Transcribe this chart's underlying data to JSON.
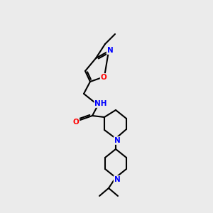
{
  "background_color": "#ebebeb",
  "atom_colors": {
    "N": "#0000ff",
    "O": "#ff0000",
    "C": "#000000",
    "H": "#008080"
  },
  "bond_color": "#000000",
  "bond_width": 1.5,
  "font_size_atoms": 7.5
}
